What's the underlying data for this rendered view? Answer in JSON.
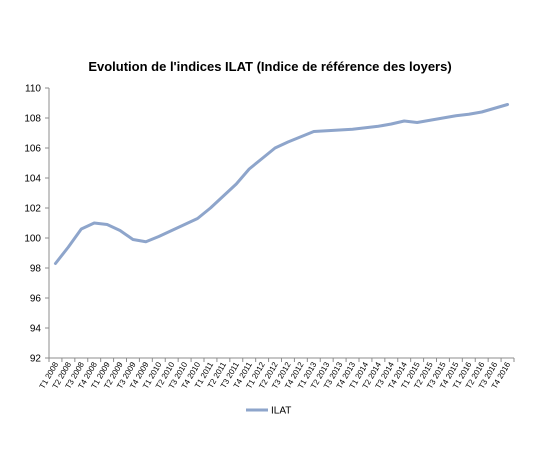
{
  "chart_data": {
    "type": "line",
    "title": "Evolution de l'indices ILAT (Indice de référence des loyers)",
    "xlabel": "",
    "ylabel": "",
    "ylim": [
      92,
      110
    ],
    "yticks": [
      92,
      94,
      96,
      98,
      100,
      102,
      104,
      106,
      108,
      110
    ],
    "grid": false,
    "legend": "bottom",
    "categories": [
      "T1 2008",
      "T2 2008",
      "T3 2008",
      "T4 2008",
      "T1 2009",
      "T2 2009",
      "T3 2009",
      "T4 2009",
      "T1 2010",
      "T2 2010",
      "T3 2010",
      "T4 2010",
      "T1 2011",
      "T2 2011",
      "T3 2011",
      "T4 2011",
      "T1 2012",
      "T2 2012",
      "T3 2012",
      "T4 2012",
      "T1 2013",
      "T2 2013",
      "T3 2013",
      "T4 2013",
      "T1 2014",
      "T2 2014",
      "T3 2014",
      "T4 2014",
      "T1 2015",
      "T2 2015",
      "T3 2015",
      "T4 2015",
      "T1 2016",
      "T2 2016",
      "T3 2016",
      "T4 2016"
    ],
    "series": [
      {
        "name": "ILAT",
        "color": "#8EA5CB",
        "values": [
          98.3,
          99.4,
          100.6,
          101.0,
          100.9,
          100.5,
          99.9,
          99.75,
          100.1,
          100.5,
          100.9,
          101.3,
          102.0,
          102.8,
          103.6,
          104.6,
          105.3,
          106.0,
          106.4,
          106.75,
          107.1,
          107.15,
          107.2,
          107.25,
          107.35,
          107.45,
          107.6,
          107.8,
          107.7,
          107.85,
          108.0,
          108.15,
          108.25,
          108.4,
          108.65,
          108.9
        ]
      }
    ]
  }
}
